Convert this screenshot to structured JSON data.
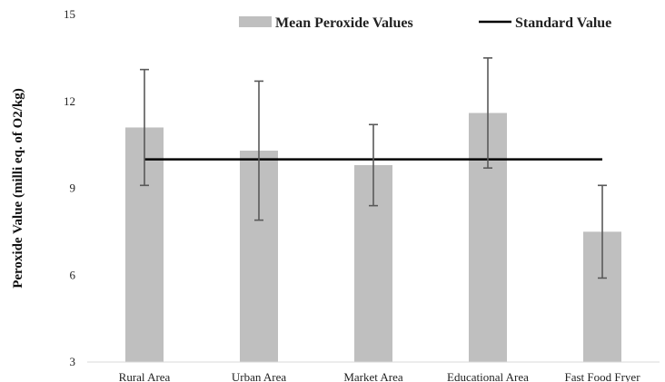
{
  "chart_data": {
    "type": "bar",
    "title": "",
    "xlabel": "",
    "ylabel": "Peroxide Value (milli eq. of O2/kg)",
    "categories": [
      "Rural Area",
      "Urban Area",
      "Market Area",
      "Educational Area",
      "Fast Food Fryer"
    ],
    "series": [
      {
        "name": "Mean Peroxide Values",
        "type": "bar",
        "color": "#bfbfbf",
        "values": [
          11.1,
          10.3,
          9.8,
          11.6,
          7.5
        ],
        "error_low": [
          9.1,
          7.9,
          8.4,
          9.7,
          5.9
        ],
        "error_high": [
          13.1,
          12.7,
          11.2,
          13.5,
          9.1
        ]
      },
      {
        "name": "Standard Value",
        "type": "line",
        "color": "#000000",
        "values": [
          10,
          10,
          10,
          10,
          10
        ]
      }
    ],
    "yticks": [
      "3",
      "6",
      "9",
      "12",
      "15"
    ],
    "ylim": [
      3,
      15
    ],
    "grid": false,
    "legend_position": "top",
    "error_bar_color": "#595959"
  }
}
